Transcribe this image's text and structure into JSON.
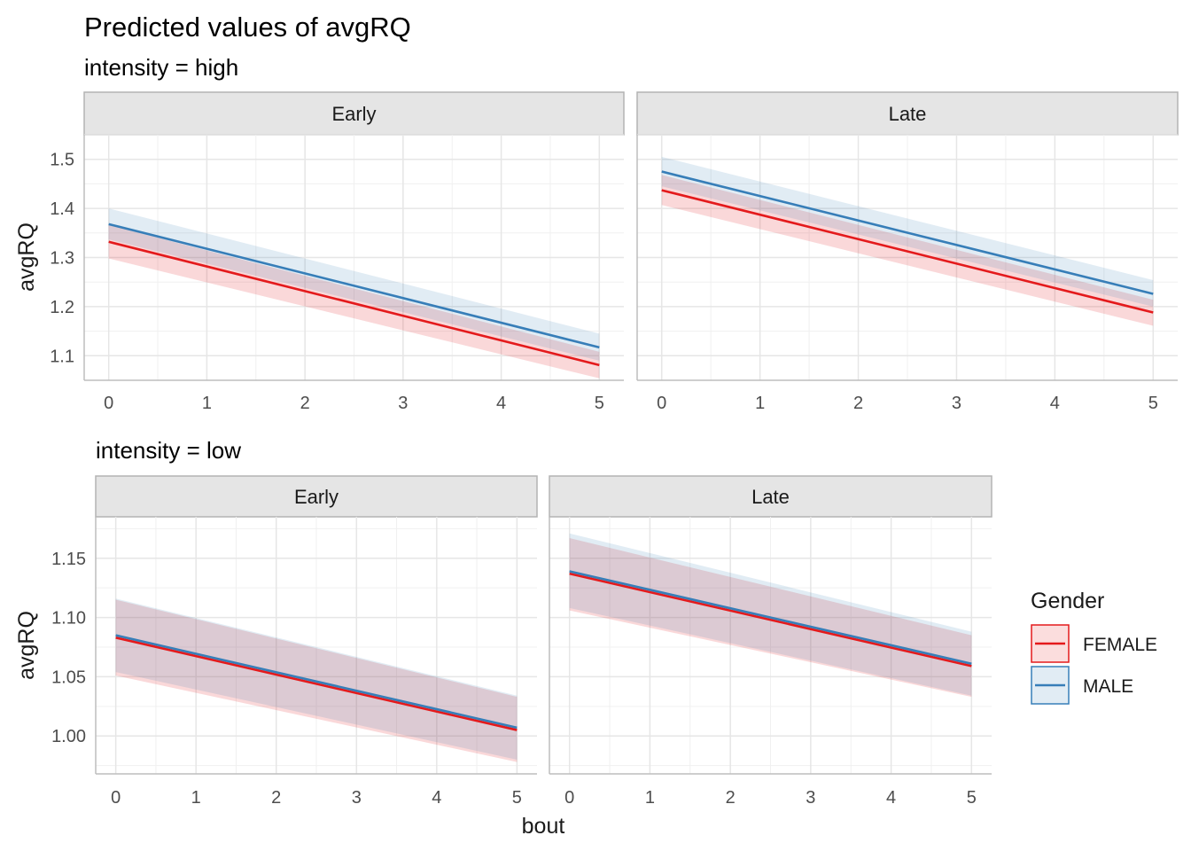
{
  "chart_data": {
    "type": "line",
    "title": "Predicted values of avgRQ",
    "xlabel": "bout",
    "ylabel": "avgRQ",
    "legend": {
      "title": "Gender",
      "position": "right",
      "entries": [
        {
          "name": "FEMALE",
          "color": "#E41A1C"
        },
        {
          "name": "MALE",
          "color": "#377EB8"
        }
      ]
    },
    "grid": true,
    "groups": [
      {
        "subtitle": "intensity = high",
        "ylim": [
          1.05,
          1.55
        ],
        "yticks": [
          1.1,
          1.2,
          1.3,
          1.4,
          1.5
        ],
        "xlim": [
          -0.25,
          5.25
        ],
        "xticks": [
          0,
          1,
          2,
          3,
          4,
          5
        ],
        "panels": [
          {
            "facet": "Early",
            "series": [
              {
                "name": "FEMALE",
                "x": [
                  0,
                  5
                ],
                "y": [
                  1.332,
                  1.081
                ],
                "lower": [
                  1.298,
                  1.054
                ],
                "upper": [
                  1.366,
                  1.108
                ]
              },
              {
                "name": "MALE",
                "x": [
                  0,
                  5
                ],
                "y": [
                  1.368,
                  1.117
                ],
                "lower": [
                  1.337,
                  1.09
                ],
                "upper": [
                  1.4,
                  1.145
                ]
              }
            ]
          },
          {
            "facet": "Late",
            "series": [
              {
                "name": "FEMALE",
                "x": [
                  0,
                  5
                ],
                "y": [
                  1.437,
                  1.188
                ],
                "lower": [
                  1.407,
                  1.161
                ],
                "upper": [
                  1.468,
                  1.214
                ]
              },
              {
                "name": "MALE",
                "x": [
                  0,
                  5
                ],
                "y": [
                  1.475,
                  1.226
                ],
                "lower": [
                  1.445,
                  1.2
                ],
                "upper": [
                  1.505,
                  1.254
                ]
              }
            ]
          }
        ]
      },
      {
        "subtitle": "intensity = low",
        "ylim": [
          0.968,
          1.185
        ],
        "yticks": [
          1.0,
          1.05,
          1.1,
          1.15
        ],
        "yticklabels": [
          "1.00",
          "1.05",
          "1.10",
          "1.15"
        ],
        "xlim": [
          -0.25,
          5.25
        ],
        "xticks": [
          0,
          1,
          2,
          3,
          4,
          5
        ],
        "panels": [
          {
            "facet": "Early",
            "series": [
              {
                "name": "FEMALE",
                "x": [
                  0,
                  5
                ],
                "y": [
                  1.083,
                  1.005
                ],
                "lower": [
                  1.051,
                  0.978
                ],
                "upper": [
                  1.115,
                  1.033
                ]
              },
              {
                "name": "MALE",
                "x": [
                  0,
                  5
                ],
                "y": [
                  1.085,
                  1.007
                ],
                "lower": [
                  1.054,
                  0.98
                ],
                "upper": [
                  1.116,
                  1.034
                ]
              }
            ]
          },
          {
            "facet": "Late",
            "series": [
              {
                "name": "FEMALE",
                "x": [
                  0,
                  5
                ],
                "y": [
                  1.137,
                  1.059
                ],
                "lower": [
                  1.106,
                  1.033
                ],
                "upper": [
                  1.167,
                  1.085
                ]
              },
              {
                "name": "MALE",
                "x": [
                  0,
                  5
                ],
                "y": [
                  1.139,
                  1.061
                ],
                "lower": [
                  1.108,
                  1.034
                ],
                "upper": [
                  1.171,
                  1.088
                ]
              }
            ]
          }
        ]
      }
    ]
  }
}
